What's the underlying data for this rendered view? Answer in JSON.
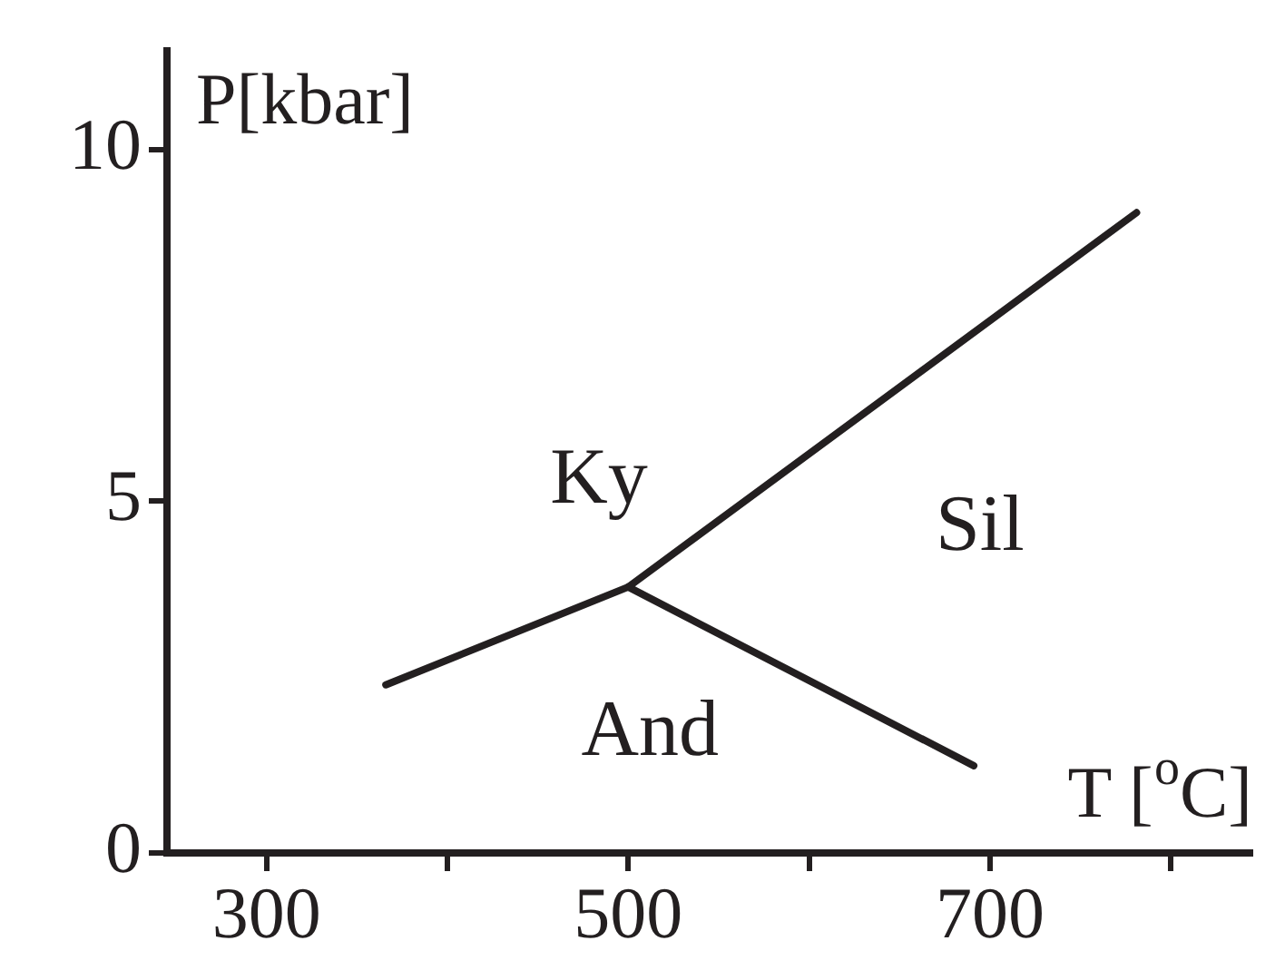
{
  "chart_data": {
    "type": "line",
    "xlabel": "T [$^{o}$C]",
    "ylabel": "P[kbar]",
    "series": [
      {
        "x": [
          366,
          500,
          781
        ],
        "values": [
          2.39,
          3.78,
          9.1
        ],
        "color": "#231f20"
      },
      {
        "x": [
          500,
          691
        ],
        "values": [
          3.78,
          1.24
        ],
        "color": "#231f20"
      }
    ],
    "xlim": [
      245,
      845
    ],
    "xticks": [
      300,
      {
        "value": 400,
        "label": null
      },
      500,
      {
        "value": 600,
        "label": null
      },
      700,
      {
        "value": 800,
        "label": null
      }
    ],
    "ylim": [
      0,
      11.4
    ],
    "yticks": [
      0,
      5,
      10
    ],
    "annotations": [
      "Ky",
      "Sil",
      "And"
    ],
    "grid": false,
    "legend": false,
    "marker": "none",
    "line_style": "solid"
  }
}
